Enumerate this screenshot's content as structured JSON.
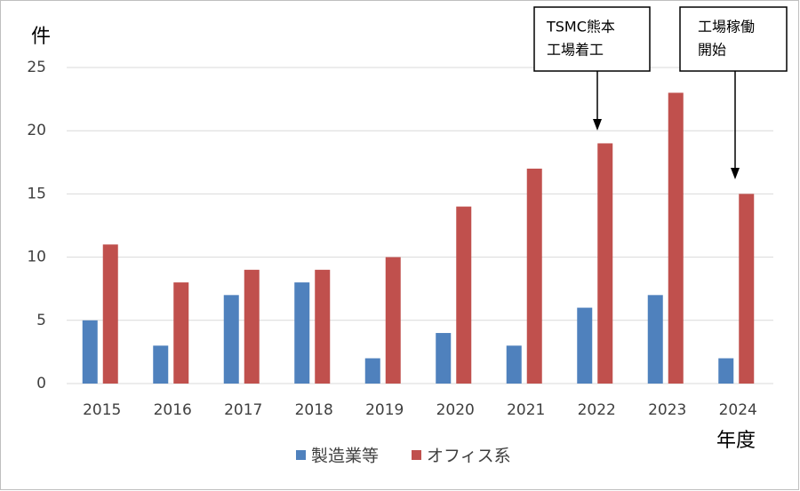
{
  "chart_data": {
    "type": "bar",
    "y_label": "件",
    "x_label": "年度",
    "categories": [
      "2015",
      "2016",
      "2017",
      "2018",
      "2019",
      "2020",
      "2021",
      "2022",
      "2023",
      "2024"
    ],
    "series": [
      {
        "name": "製造業等",
        "color": "#4f81bd",
        "values": [
          5,
          3,
          7,
          8,
          2,
          4,
          3,
          6,
          7,
          2
        ]
      },
      {
        "name": "オフィス系",
        "color": "#c0504d",
        "values": [
          11,
          8,
          9,
          9,
          10,
          14,
          17,
          19,
          23,
          15
        ]
      }
    ],
    "ylim": [
      0,
      25
    ],
    "yticks": [
      0,
      5,
      10,
      15,
      20,
      25
    ],
    "grid": true,
    "annotations": [
      {
        "lines": [
          "TSMC熊本",
          "工場着工"
        ]
      },
      {
        "lines": [
          "工場稼働",
          "開始"
        ]
      }
    ]
  }
}
